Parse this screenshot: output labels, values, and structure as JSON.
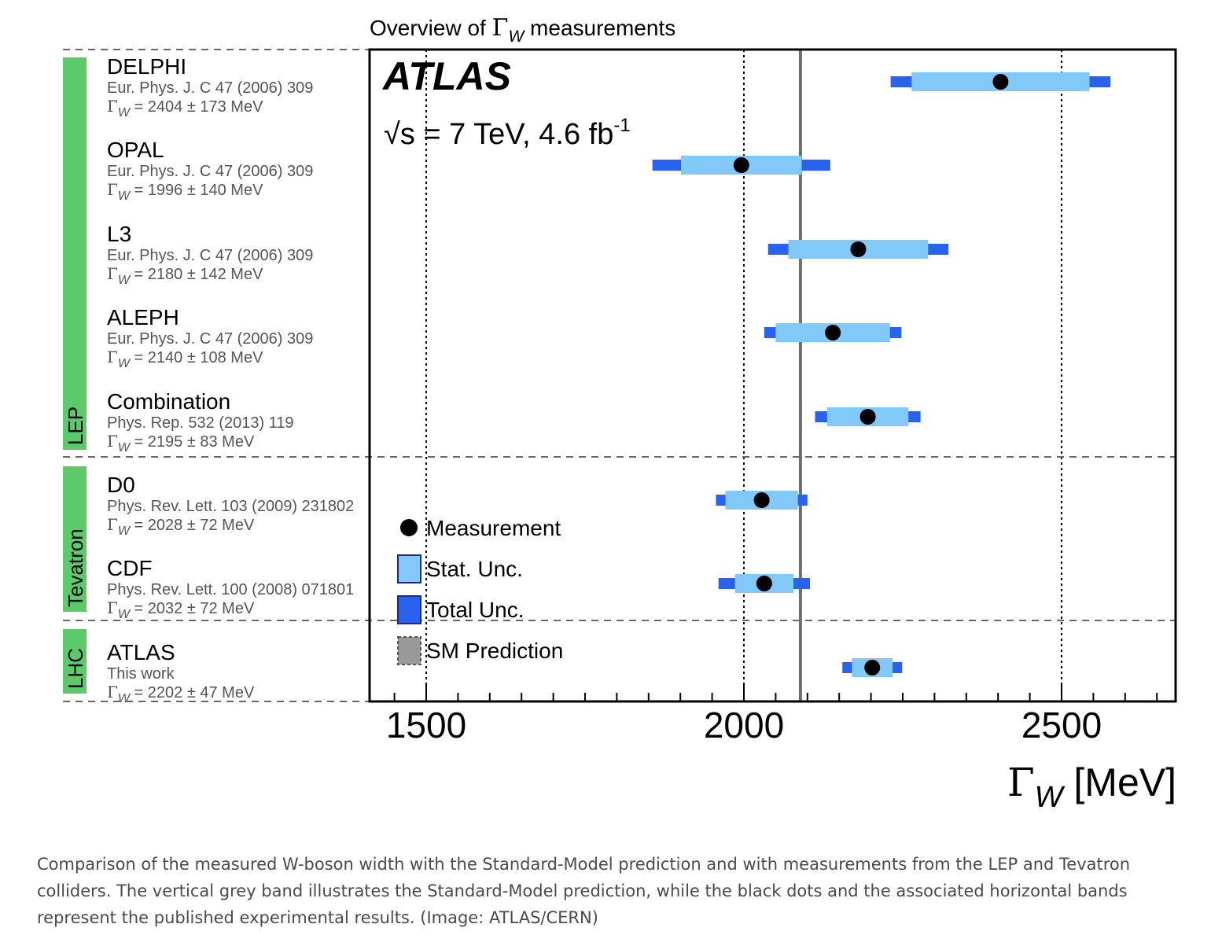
{
  "chart_data": {
    "type": "errorbar",
    "title_prefix": "Overview of ",
    "title_symbol": "Γ",
    "title_sub": "W",
    "title_suffix": " measurements",
    "experiment_label": "ATLAS",
    "energy_label_sqrt": "√s",
    "energy_label_text": " = 7 TeV, 4.6 fb",
    "energy_label_sup": "-1",
    "xlabel_symbol": "Γ",
    "xlabel_sub": "W",
    "xlabel_unit": " [MeV]",
    "xlim": [
      1410,
      2680
    ],
    "xticks": [
      "1500",
      "2000",
      "2500"
    ],
    "sm_prediction": 2089,
    "groups": [
      {
        "name": "LEP",
        "color": "#5cc96b"
      },
      {
        "name": "Tevatron",
        "color": "#5cc96b"
      },
      {
        "name": "LHC",
        "color": "#5cc96b"
      }
    ],
    "measurements": [
      {
        "experiment": "DELPHI",
        "reference": "Eur. Phys. J. C 47 (2006) 309",
        "result": "= 2404 ± 173 MeV",
        "value": 2404,
        "stat": 140,
        "total": 173,
        "group": "LEP"
      },
      {
        "experiment": "OPAL",
        "reference": "Eur. Phys. J. C 47 (2006) 309",
        "result": "= 1996 ± 140 MeV",
        "value": 1996,
        "stat": 95,
        "total": 140,
        "group": "LEP"
      },
      {
        "experiment": "L3",
        "reference": "Eur. Phys. J. C 47 (2006) 309",
        "result": "= 2180 ± 142 MeV",
        "value": 2180,
        "stat": 110,
        "total": 142,
        "group": "LEP"
      },
      {
        "experiment": "ALEPH",
        "reference": "Eur. Phys. J. C 47 (2006) 309",
        "result": "= 2140 ± 108 MeV",
        "value": 2140,
        "stat": 90,
        "total": 108,
        "group": "LEP"
      },
      {
        "experiment": "Combination",
        "reference": "Phys. Rep. 532 (2013) 119",
        "result": "= 2195 ± 83 MeV",
        "value": 2195,
        "stat": 64,
        "total": 83,
        "group": "LEP"
      },
      {
        "experiment": "D0",
        "reference": "Phys. Rev. Lett. 103 (2009) 231802",
        "result": "= 2028 ± 72 MeV",
        "value": 2028,
        "stat": 57,
        "total": 72,
        "group": "Tevatron"
      },
      {
        "experiment": "CDF",
        "reference": "Phys. Rev. Lett. 100 (2008) 071801",
        "result": "= 2032 ± 72 MeV",
        "value": 2032,
        "stat": 46,
        "total": 72,
        "group": "Tevatron"
      },
      {
        "experiment": "ATLAS",
        "reference": "This work",
        "result": "= 2202 ± 47 MeV",
        "value": 2202,
        "stat": 32,
        "total": 47,
        "group": "LHC"
      }
    ],
    "legend": [
      {
        "label": "Measurement",
        "kind": "marker",
        "color": "#000000"
      },
      {
        "label": "Stat. Unc.",
        "kind": "box",
        "color": "#82c8f8"
      },
      {
        "label": "Total Unc.",
        "kind": "box",
        "color": "#2a62f0"
      },
      {
        "label": "SM Prediction",
        "kind": "box-dashed",
        "color": "#999999"
      }
    ],
    "legend_placement": "bottom-left",
    "colors": {
      "stat": "#82c8f8",
      "total": "#2a62f0",
      "sm_line": "#6e6e6e",
      "marker": "#000000",
      "group": "#5cc96b"
    }
  },
  "caption": "Comparison of the measured W-boson width with the Standard-Model prediction and with measurements from the LEP and Tevatron colliders. The vertical grey band illustrates the Standard-Model prediction, while the black dots and the associated horizontal bands represent the published experimental results. (Image: ATLAS/CERN)"
}
